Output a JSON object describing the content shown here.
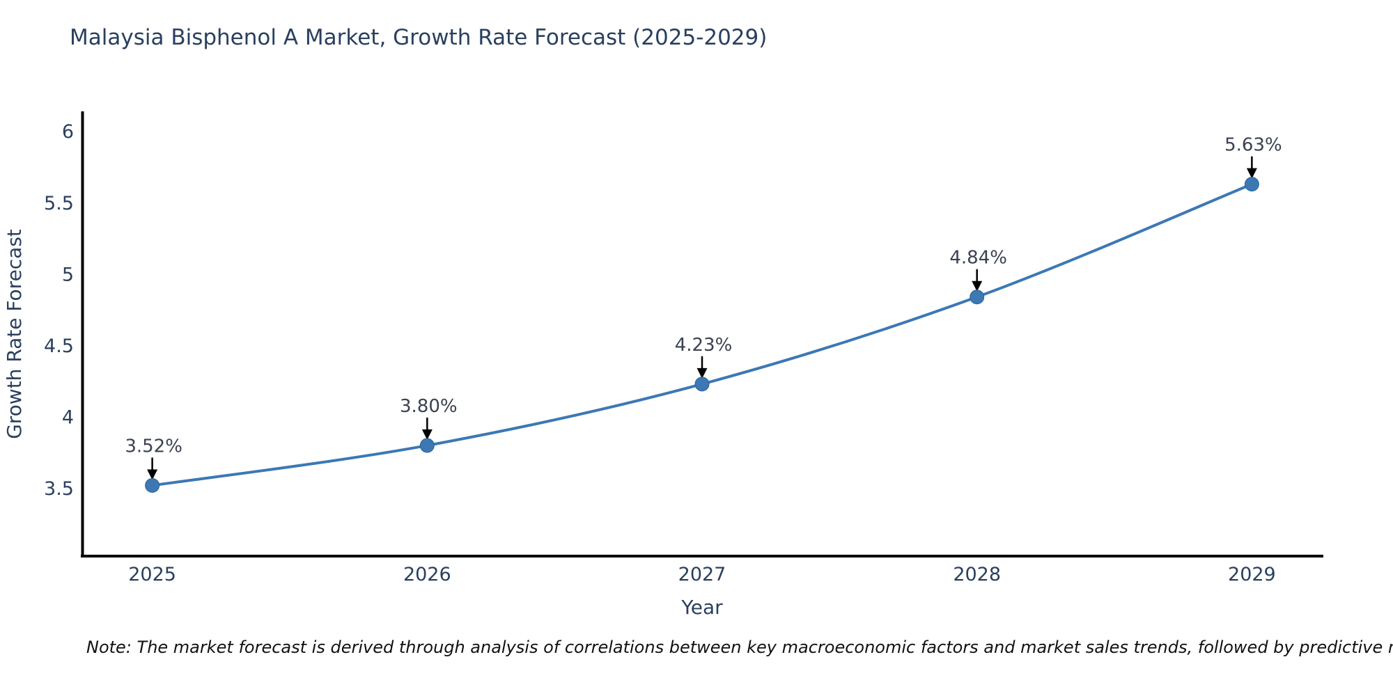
{
  "chart_data": {
    "type": "line",
    "title": "Malaysia Bisphenol A Market, Growth Rate Forecast (2025-2029)",
    "xlabel": "Year",
    "ylabel": "Growth Rate Forecast",
    "x": [
      2025,
      2026,
      2027,
      2028,
      2029
    ],
    "x_tick_labels": [
      "2025",
      "2026",
      "2027",
      "2028",
      "2029"
    ],
    "series": [
      {
        "name": "Growth Rate Forecast",
        "values": [
          3.52,
          3.8,
          4.23,
          4.84,
          5.63
        ]
      }
    ],
    "point_labels": [
      "3.52%",
      "3.80%",
      "4.23%",
      "4.84%",
      "5.63%"
    ],
    "y_ticks": [
      3.5,
      4,
      4.5,
      5,
      5.5,
      6
    ],
    "y_tick_labels": [
      "3.5",
      "4",
      "4.5",
      "5",
      "5.5",
      "6"
    ],
    "xlim": [
      2024.74,
      2029.26
    ],
    "ylim": [
      3.03,
      6.14
    ],
    "grid": false,
    "legend_position": "none",
    "line_shape": "spline",
    "colors": {
      "line": "#3c78b4",
      "marker": "#3c78b4",
      "marker_edge": "#2f6396",
      "axis": "#000000",
      "text": "#2a3f5f",
      "annotation_text": "#3a4150",
      "arrow": "#000000",
      "background": "#ffffff"
    }
  },
  "note": "Note: The market forecast is derived through analysis of correlations between key macroeconomic factors and market sales trends, followed by predictive modeling to project future sales"
}
